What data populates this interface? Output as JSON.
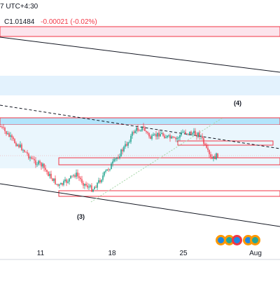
{
  "header": {
    "session_text": "7 UTC+4:30",
    "close_text": "C1.01484",
    "change_text": "-0.00021 (-0.02%)"
  },
  "colors": {
    "up": "#089981",
    "down": "#f23645",
    "zone_blue": "#b3e5fc",
    "zone_red": "#fce4ec",
    "line": "#131722",
    "dotted": "#a5d6a7"
  },
  "chart_data": {
    "type": "candlestick",
    "title": "",
    "x_ticks": [
      "11",
      "18",
      "25",
      "Aug"
    ],
    "wave_labels": [
      "(3)",
      "(4)"
    ],
    "annotations": [
      "parallel channel",
      "dashed trendline",
      "dotted trendline",
      "support/resistance zones"
    ],
    "grid": false,
    "event_markers": 5
  }
}
